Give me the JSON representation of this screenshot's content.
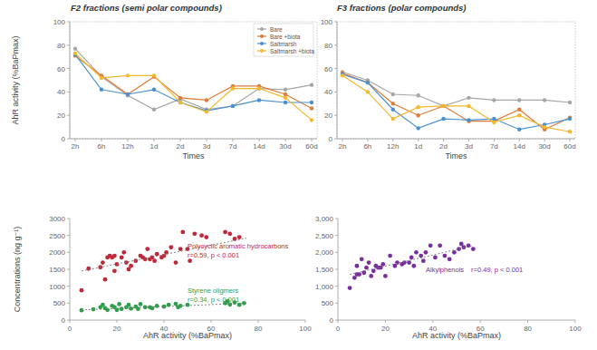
{
  "chart_data": [
    {
      "type": "line",
      "title": "F2 fractions (semi polar compounds)",
      "y_label": "AhR activity (%BaPmax)",
      "x_label": "Times",
      "categories": [
        "2h",
        "6h",
        "12h",
        "1d",
        "2d",
        "3d",
        "7d",
        "14d",
        "30d",
        "60d"
      ],
      "ylim": [
        0,
        100
      ],
      "yticks": [
        0,
        20,
        40,
        60,
        80,
        100
      ],
      "legend": "upper right",
      "marker": "circle",
      "series": [
        {
          "name": "Bare",
          "color": "#a6a6a6",
          "values": [
            77,
            53,
            37,
            25,
            34,
            25,
            28,
            43,
            42,
            46
          ]
        },
        {
          "name": "Bare +biota",
          "color": "#e07b39",
          "values": [
            71,
            54,
            38,
            53,
            35,
            33,
            45,
            45,
            38,
            26
          ]
        },
        {
          "name": "Saltmarsh",
          "color": "#4a90d0",
          "values": [
            72,
            42,
            38,
            42,
            31,
            24,
            28,
            33,
            31,
            31
          ]
        },
        {
          "name": "Saltmarsh +biota",
          "color": "#f2b82e",
          "values": [
            73,
            52,
            54,
            54,
            31,
            23,
            43,
            43,
            35,
            16
          ]
        }
      ]
    },
    {
      "type": "line",
      "title": "F3 fractions (polar compounds)",
      "x_label": "Times",
      "categories": [
        "2h",
        "6h",
        "12h",
        "1d",
        "2d",
        "3d",
        "7d",
        "14d",
        "30d",
        "60d"
      ],
      "ylim": [
        0,
        100
      ],
      "yticks": [
        0,
        20,
        40,
        60,
        80,
        100
      ],
      "marker": "circle",
      "series": [
        {
          "color": "#a6a6a6",
          "values": [
            57,
            50,
            38,
            37,
            28,
            35,
            33,
            33,
            33,
            31
          ]
        },
        {
          "color": "#e07b39",
          "values": [
            56,
            48,
            30,
            20,
            28,
            15,
            15,
            25,
            8,
            18
          ]
        },
        {
          "color": "#4a90d0",
          "values": [
            55,
            48,
            25,
            9,
            17,
            16,
            17,
            8,
            12,
            17
          ]
        },
        {
          "color": "#f2b82e",
          "values": [
            54,
            40,
            17,
            27,
            28,
            28,
            14,
            20,
            10,
            6
          ]
        }
      ]
    },
    {
      "type": "scatter",
      "x_label": "AhR activity (%BaPmax)",
      "y_label": "Concentrations (ng g⁻¹)",
      "xlim": [
        0,
        100
      ],
      "xticks": [
        0,
        20,
        40,
        60,
        80,
        100
      ],
      "ylim": [
        0,
        3000
      ],
      "yticks": [
        0,
        500,
        1000,
        1500,
        2000,
        2500,
        3000
      ],
      "marker": "circle",
      "annotations": [
        "r=0.59, p < 0.001",
        "r=0.34, p < 0.001"
      ],
      "series": [
        {
          "name": "Polycyclic aromatic hydrocarbons",
          "color": "#c0283c",
          "x": [
            5,
            8,
            13,
            14,
            16,
            17,
            18,
            19,
            20,
            22,
            23,
            24,
            25,
            26,
            28,
            30,
            31,
            32,
            33,
            34,
            35,
            36,
            37,
            39,
            40,
            41,
            43,
            45,
            47,
            48,
            50,
            51,
            53,
            56,
            58,
            66,
            68,
            70,
            72,
            19,
            15
          ],
          "values": [
            880,
            1520,
            1560,
            1700,
            1850,
            1900,
            1850,
            1450,
            1650,
            1850,
            2000,
            1700,
            1500,
            1600,
            1750,
            1900,
            1850,
            1800,
            2100,
            1800,
            1850,
            1750,
            1950,
            1850,
            1900,
            2000,
            2150,
            1700,
            2100,
            2600,
            2100,
            1750,
            2550,
            2500,
            2450,
            2600,
            2550,
            2400,
            2450,
            1900,
            1200
          ]
        },
        {
          "type": "line",
          "line_style": "dotted",
          "color": "#777777",
          "x": [
            5,
            75
          ],
          "values": [
            1450,
            2420
          ]
        },
        {
          "name": "Styrene oligmers",
          "color": "#2ea04a",
          "x": [
            5,
            10,
            13,
            14,
            15,
            16,
            18,
            19,
            20,
            21,
            22,
            24,
            25,
            26,
            28,
            29,
            30,
            32,
            34,
            35,
            37,
            40,
            42,
            45,
            46,
            47,
            50,
            66,
            67,
            68,
            70,
            72,
            74
          ],
          "values": [
            290,
            320,
            380,
            450,
            350,
            300,
            420,
            380,
            300,
            470,
            330,
            380,
            450,
            340,
            400,
            330,
            470,
            380,
            380,
            350,
            420,
            400,
            450,
            480,
            380,
            420,
            450,
            500,
            560,
            460,
            520,
            450,
            500
          ]
        },
        {
          "type": "line",
          "line_style": "dotted",
          "color": "#777777",
          "x": [
            5,
            75
          ],
          "values": [
            300,
            500
          ]
        }
      ]
    },
    {
      "type": "scatter",
      "x_label": "AhR activity (%BaPmax)",
      "xlim": [
        0,
        100
      ],
      "xticks": [
        0,
        20,
        40,
        60,
        80,
        100
      ],
      "ylim": [
        0,
        3000
      ],
      "yticks": [
        0,
        500,
        {
          "value": 1000,
          "label": "1,000"
        },
        {
          "value": 1500,
          "label": "1,500"
        },
        {
          "value": 2000,
          "label": "2,000"
        },
        {
          "value": 2500,
          "label": "2,500"
        },
        {
          "value": 3000,
          "label": "3,000"
        }
      ],
      "marker": "circle",
      "annotations": [
        "r=0.49, p < 0.001"
      ],
      "series": [
        {
          "name": "Alkylphenols",
          "color": "#7a2fa0",
          "x": [
            5,
            7,
            8,
            9,
            10,
            11,
            12,
            13,
            14,
            15,
            16,
            17,
            18,
            19,
            20,
            22,
            24,
            25,
            27,
            28,
            30,
            31,
            32,
            33,
            35,
            36,
            37,
            39,
            41,
            43,
            45,
            47,
            49,
            51,
            52,
            53,
            55,
            57,
            8
          ],
          "values": [
            950,
            1250,
            1600,
            1350,
            1800,
            1400,
            1550,
            1700,
            1300,
            1450,
            1600,
            1550,
            1550,
            1650,
            1300,
            1900,
            1600,
            1700,
            1650,
            1700,
            1700,
            1850,
            1600,
            2000,
            1900,
            1750,
            2000,
            2200,
            1850,
            2200,
            1900,
            1800,
            2000,
            2100,
            2250,
            2150,
            2200,
            2100,
            1350
          ]
        },
        {
          "type": "line",
          "line_style": "dotted",
          "color": "#777777",
          "x": [
            5,
            57
          ],
          "values": [
            1350,
            2200
          ]
        }
      ]
    }
  ]
}
